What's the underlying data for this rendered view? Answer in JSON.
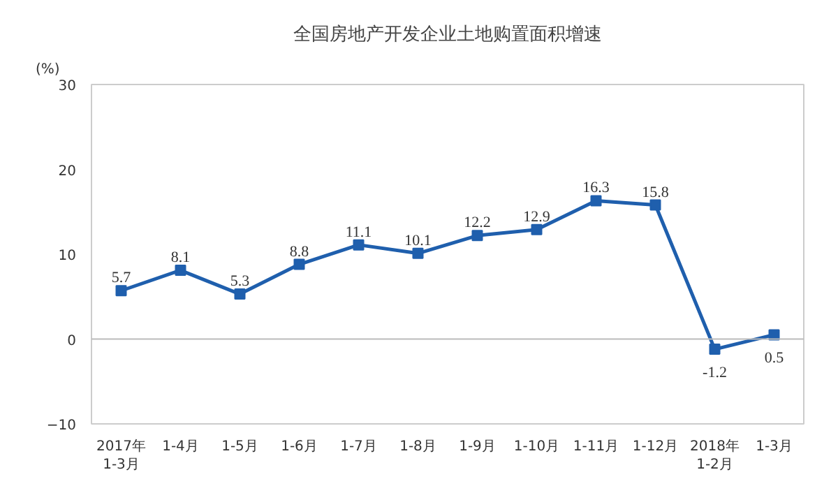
{
  "chart_data": {
    "type": "line",
    "title": "全国房地产开发企业土地购置面积增速",
    "ylabel": "(%)",
    "categories": [
      "2017年\n1-3月",
      "1-4月",
      "1-5月",
      "1-6月",
      "1-7月",
      "1-8月",
      "1-9月",
      "1-10月",
      "1-11月",
      "1-12月",
      "2018年\n1-2月",
      "1-3月"
    ],
    "series": [
      {
        "color": "#1f5fad",
        "values": [
          5.7,
          8.1,
          5.3,
          8.8,
          11.1,
          10.1,
          12.2,
          12.9,
          16.3,
          15.8,
          -1.2,
          0.5
        ]
      }
    ],
    "ylim": [
      -10,
      30
    ],
    "yticks": [
      -10,
      0,
      10,
      20,
      30
    ],
    "ref_lines": [
      {
        "axis": "y",
        "value": 0,
        "color": "#bbbbbb"
      }
    ],
    "grid": false,
    "marker": "square",
    "line_style": "solid",
    "data_labels": true
  }
}
